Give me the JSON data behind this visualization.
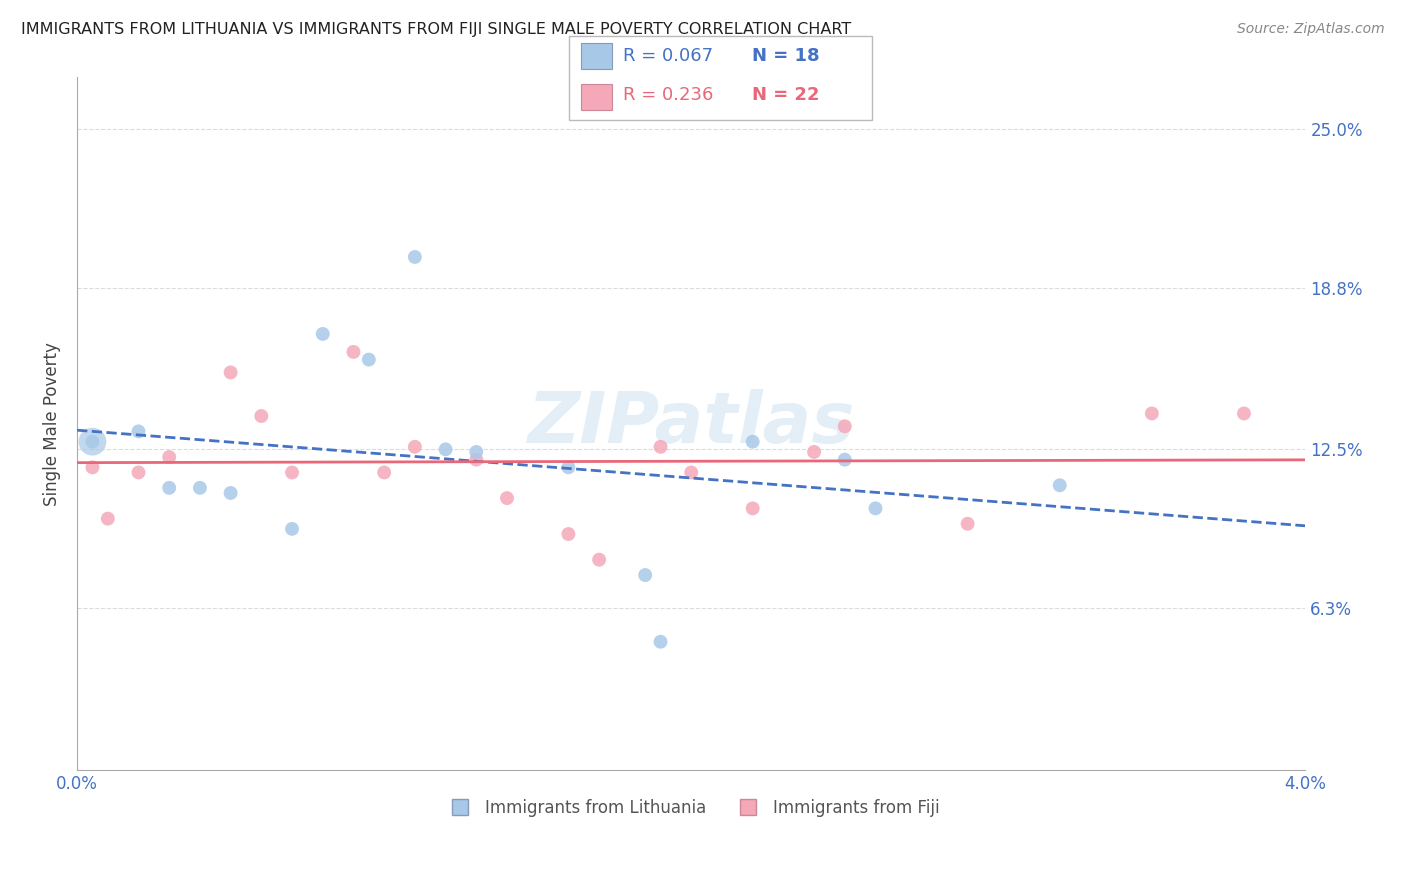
{
  "title": "IMMIGRANTS FROM LITHUANIA VS IMMIGRANTS FROM FIJI SINGLE MALE POVERTY CORRELATION CHART",
  "source": "Source: ZipAtlas.com",
  "ylabel": "Single Male Poverty",
  "r_lithuania": "R = 0.067",
  "n_lithuania": "N = 18",
  "r_fiji": "R = 0.236",
  "n_fiji": "N = 22",
  "legend_label_1": "Immigrants from Lithuania",
  "legend_label_2": "Immigrants from Fiji",
  "lithuania_color": "#a8c8e8",
  "fiji_color": "#f4a8b8",
  "lithuania_line_color": "#4472c4",
  "fiji_line_color": "#e8687a",
  "background_color": "#ffffff",
  "grid_color": "#d8d8d8",
  "marker_size": 100,
  "watermark": "ZIPatlas",
  "title_color": "#222222",
  "axis_label_color": "#4472c4",
  "xlim": [
    0.0,
    0.04
  ],
  "ylim": [
    0.0,
    0.27
  ],
  "y_tick_vals": [
    0.063,
    0.125,
    0.188,
    0.25
  ],
  "y_tick_labs": [
    "6.3%",
    "12.5%",
    "18.8%",
    "25.0%"
  ],
  "lithuania_x": [
    0.0005,
    0.002,
    0.003,
    0.004,
    0.005,
    0.007,
    0.008,
    0.0095,
    0.011,
    0.012,
    0.013,
    0.016,
    0.0185,
    0.019,
    0.022,
    0.025,
    0.026,
    0.032
  ],
  "lithuania_y": [
    0.128,
    0.132,
    0.11,
    0.11,
    0.108,
    0.094,
    0.17,
    0.16,
    0.2,
    0.125,
    0.124,
    0.118,
    0.076,
    0.05,
    0.128,
    0.121,
    0.102,
    0.111
  ],
  "fiji_x": [
    0.0005,
    0.001,
    0.002,
    0.003,
    0.005,
    0.006,
    0.007,
    0.009,
    0.01,
    0.011,
    0.013,
    0.014,
    0.016,
    0.017,
    0.019,
    0.02,
    0.022,
    0.024,
    0.025,
    0.029,
    0.035,
    0.038
  ],
  "fiji_y": [
    0.118,
    0.098,
    0.116,
    0.122,
    0.155,
    0.138,
    0.116,
    0.163,
    0.116,
    0.126,
    0.121,
    0.106,
    0.092,
    0.082,
    0.126,
    0.116,
    0.102,
    0.124,
    0.134,
    0.096,
    0.139,
    0.139
  ]
}
